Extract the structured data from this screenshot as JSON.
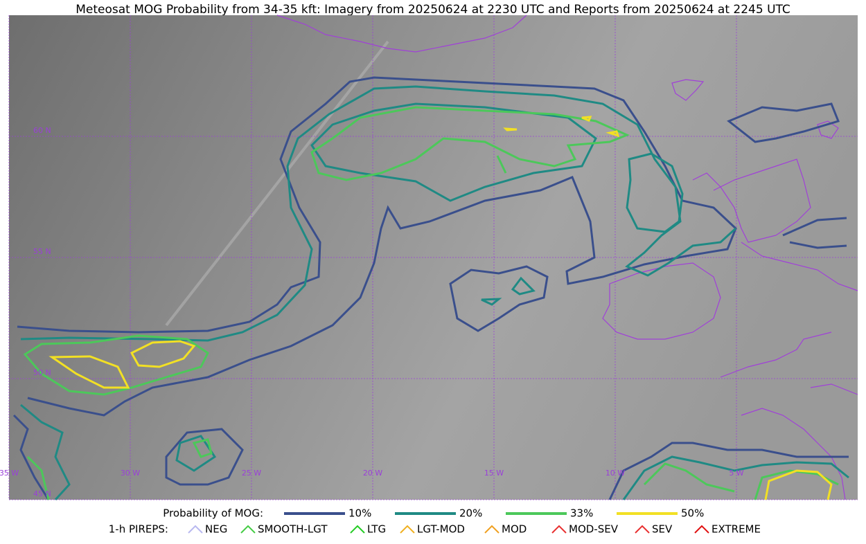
{
  "title": "Meteosat MOG Probability from 34-35 kft: Imagery from 20250624 at 2230 UTC and Reports from 20250624 at 2245 UTC",
  "map": {
    "longitude_labels": [
      "35 W",
      "30 W",
      "25 W",
      "20 W",
      "15 W",
      "10 W",
      "5 W"
    ],
    "latitude_labels": [
      "60 N",
      "55 N",
      "50 N",
      "45 N"
    ]
  },
  "legend": {
    "probability": {
      "label": "Probability of MOG:",
      "items": [
        {
          "label": "10%",
          "color": "#3a4f8c"
        },
        {
          "label": "20%",
          "color": "#1f8a84"
        },
        {
          "label": "33%",
          "color": "#4cc85a"
        },
        {
          "label": "50%",
          "color": "#f2e024"
        }
      ]
    },
    "pireps": {
      "label": "1-h PIREPS:",
      "items": [
        {
          "label": "NEG",
          "color": "#b8b8f0"
        },
        {
          "label": "SMOOTH-LGT",
          "color": "#44cc44"
        },
        {
          "label": "LTG",
          "color": "#22cc22"
        },
        {
          "label": "LGT-MOD",
          "color": "#f0b020"
        },
        {
          "label": "MOD",
          "color": "#f0a020"
        },
        {
          "label": "MOD-SEV",
          "color": "#e83030"
        },
        {
          "label": "SEV",
          "color": "#e83030"
        },
        {
          "label": "EXTREME",
          "color": "#e01010"
        }
      ]
    }
  }
}
